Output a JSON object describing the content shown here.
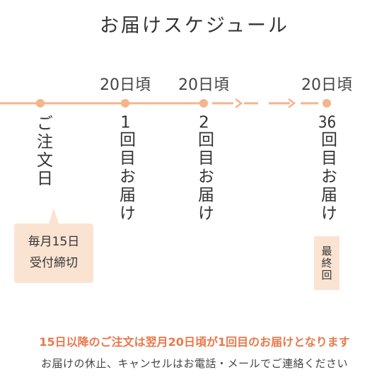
{
  "title": "お届けスケジュール",
  "colors": {
    "accent": "#f4b48c",
    "box_bg": "#fbe3d2",
    "note_orange": "#e9784a"
  },
  "timeline": {
    "points": [
      {
        "date_label": "",
        "step_label": "ご注文日"
      },
      {
        "date_label": "20日頃",
        "step_label": "1回目お届け"
      },
      {
        "date_label": "20日頃",
        "step_label": "2回目お届け"
      },
      {
        "date_label": "20日頃",
        "step_label": "36回目お届け"
      }
    ]
  },
  "deadline_box": {
    "line1": "毎月15日",
    "line2": "受付締切"
  },
  "final_badge": "最終回",
  "notes": {
    "orange": "15日以降のご注文は翌月20日頃が1回目のお届けとなります",
    "gray": "お届けの休止、キャンセルはお電話・メールでご連絡ください"
  }
}
